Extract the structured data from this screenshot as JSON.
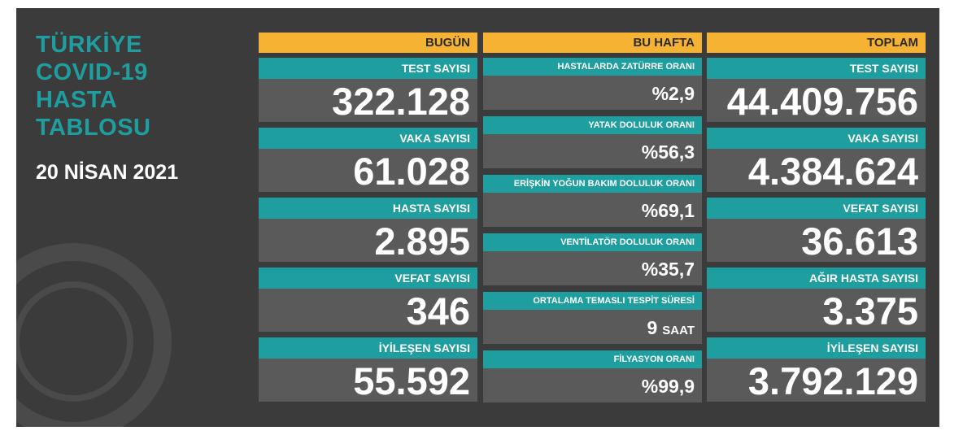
{
  "header": {
    "title_lines": [
      "TÜRKİYE",
      "COVID-19",
      "HASTA",
      "TABLOSU"
    ],
    "date": "20 NİSAN 2021"
  },
  "columns": [
    {
      "title": "BUGÜN",
      "cells": [
        {
          "label": "TEST SAYISI",
          "value": "322.128"
        },
        {
          "label": "VAKA SAYISI",
          "value": "61.028"
        },
        {
          "label": "HASTA SAYISI",
          "value": "2.895"
        },
        {
          "label": "VEFAT SAYISI",
          "value": "346"
        },
        {
          "label": "İYİLEŞEN SAYISI",
          "value": "55.592"
        }
      ]
    },
    {
      "title": "BU HAFTA",
      "cells": [
        {
          "label": "HASTALARDA ZATÜRRE ORANI",
          "value": "%2,9"
        },
        {
          "label": "YATAK DOLULUK ORANI",
          "value": "%56,3"
        },
        {
          "label": "ERİŞKİN YOĞUN BAKIM DOLULUK ORANI",
          "value": "%69,1"
        },
        {
          "label": "VENTİLATÖR DOLULUK ORANI",
          "value": "%35,7"
        },
        {
          "label": "ORTALAMA TEMASLI TESPİT SÜRESİ",
          "value": "9",
          "unit": "SAAT"
        },
        {
          "label": "FİLYASYON ORANI",
          "value": "%99,9"
        }
      ]
    },
    {
      "title": "TOPLAM",
      "cells": [
        {
          "label": "TEST SAYISI",
          "value": "44.409.756"
        },
        {
          "label": "VAKA SAYISI",
          "value": "4.384.624"
        },
        {
          "label": "VEFAT SAYISI",
          "value": "36.613"
        },
        {
          "label": "AĞIR HASTA SAYISI",
          "value": "3.375"
        },
        {
          "label": "İYİLEŞEN SAYISI",
          "value": "3.792.129"
        }
      ]
    }
  ]
}
